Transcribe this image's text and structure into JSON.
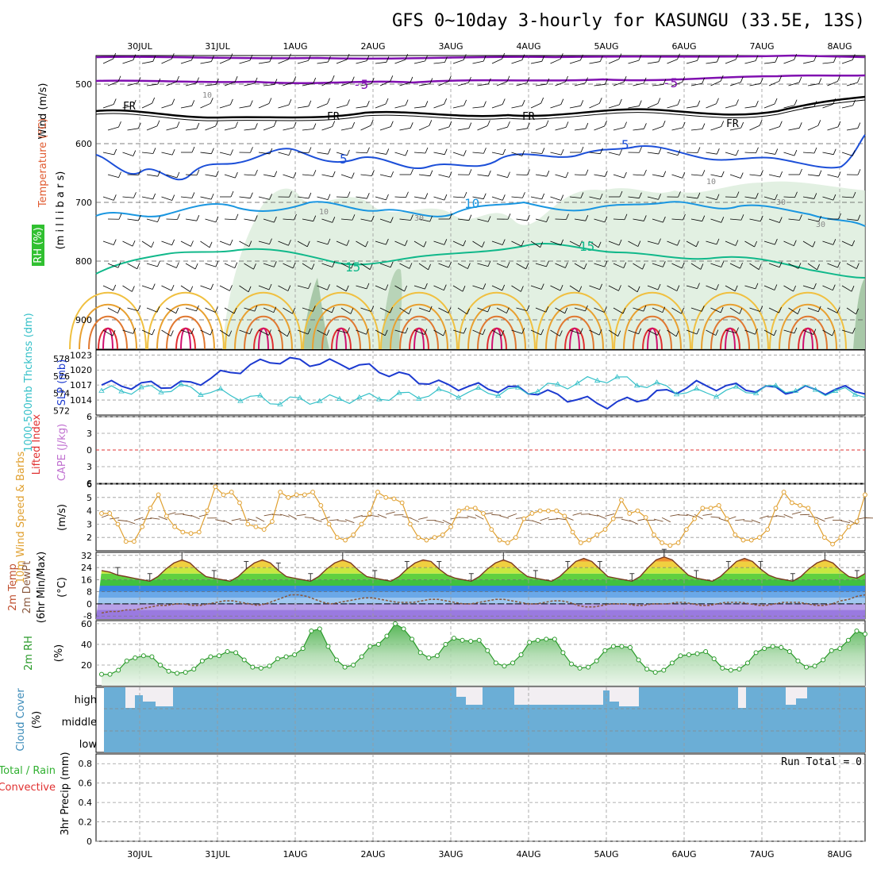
{
  "title": "GFS 0~10day 3-hourly for KASUNGU (33.5E, 13S)",
  "dates": [
    "30JUL",
    "31JUL",
    "1AUG",
    "2AUG",
    "3AUG",
    "4AUG",
    "5AUG",
    "6AUG",
    "7AUG",
    "8AUG"
  ],
  "colors": {
    "frame": "#000000",
    "grid": "#999999",
    "wind_purple": "#8010b0",
    "freezing": "#000000",
    "temp5": "#1c4fd8",
    "temp10": "#1a96e0",
    "temp15": "#10b88a",
    "rh_fill": "#d8ebd8",
    "slp": "#1c3ad0",
    "thickness": "#35c0c8",
    "lifted_zero": "#e03030",
    "wind10": "#e0a030",
    "barb": "#7a5030",
    "dewpt": "#8a5a40",
    "rh2m": "#2a9a2a",
    "cloud_bg": "#6baed6",
    "cloud_clear": "#f2eef2"
  },
  "panels": {
    "upper": {
      "labels": {
        "wind": "Wind (m/s)",
        "temperature": "Temperature (°C)",
        "rh": "RH (%)",
        "millibars": "(m i l l i b a r s)"
      },
      "pressure_ticks": [
        "500",
        "600",
        "700",
        "800",
        "900"
      ],
      "contour_labels": {
        "five": "5",
        "ten": "10",
        "fifteen": "15",
        "freezing": "FR",
        "neg_five": "-5",
        "rh10": "10",
        "rh30": "30"
      }
    },
    "slp_panel": {
      "labels": {
        "thickness": "1000-500mb Thcknss (dm)",
        "slp": "SLP (mb)"
      },
      "left_ticks": [
        "578",
        "576",
        "574",
        "572"
      ],
      "right_ticks": [
        "1023",
        "1020",
        "1017",
        "1014"
      ]
    },
    "stability": {
      "labels": {
        "lifted": "Lifted Index",
        "cape": "CAPE (J/kg)"
      },
      "ticks": [
        "6",
        "3",
        "0",
        "3",
        "6"
      ]
    },
    "wind10": {
      "labels": {
        "title": "10m Wind Speed & Barbs",
        "unit": "(m/s)"
      },
      "ticks": [
        "6",
        "5",
        "4",
        "3",
        "2"
      ]
    },
    "temp2m": {
      "labels": {
        "line1": "2m Temp",
        "line2": "2m DewPt",
        "line3": "(6hr Min/Max)",
        "unit": "(°C)"
      },
      "ticks": [
        "32",
        "24",
        "16",
        "8",
        "0",
        "-8"
      ]
    },
    "rh2m": {
      "labels": {
        "title": "2m RH",
        "unit": "(%)"
      },
      "ticks": [
        "60",
        "40",
        "20"
      ]
    },
    "cloud": {
      "labels": {
        "title": "Cloud Cover",
        "unit": "(%)",
        "high": "high",
        "middle": "middle",
        "low": "low"
      }
    },
    "precip": {
      "labels": {
        "total": "Total / Rain",
        "convective": "Convective",
        "axis": "3hr Precip (mm)",
        "run_total": "Run Total = 0"
      },
      "ticks": [
        "0.8",
        "0.6",
        "0.4",
        "0.2",
        "0"
      ]
    }
  },
  "chart_data": [
    {
      "type": "line",
      "title": "Sea level pressure and 1000-500mb thickness",
      "x": [
        "30JUL",
        "31JUL",
        "1AUG",
        "2AUG",
        "3AUG",
        "4AUG",
        "5AUG",
        "6AUG",
        "7AUG",
        "8AUG"
      ],
      "series": [
        {
          "name": "SLP (mb)",
          "values": [
            1017,
            1017,
            1022,
            1021,
            1017,
            1016,
            1013,
            1017,
            1016,
            1016
          ]
        },
        {
          "name": "1000-500mb Thcknss (dm)",
          "values": [
            574.5,
            575,
            572.5,
            573,
            574,
            574.5,
            577,
            574,
            575,
            574
          ]
        }
      ]
    },
    {
      "type": "line",
      "title": "10m Wind Speed",
      "ylabel": "(m/s)",
      "values": [
        3.8,
        3.8,
        3.0,
        1.7,
        1.7,
        2.8,
        4.2,
        5.2,
        3.6,
        2.8,
        2.4,
        2.3,
        2.4,
        4.0,
        5.8,
        5.2,
        5.4,
        4.6,
        3.0,
        2.8,
        2.6,
        3.2,
        5.4,
        5.0,
        5.2,
        5.2,
        5.4,
        4.4,
        3.0,
        2.0,
        1.8,
        2.2,
        3.0,
        3.8,
        5.4,
        5.0,
        4.9,
        4.6,
        3.0,
        2.0,
        1.8,
        2.0,
        2.2,
        2.8,
        4.0,
        4.2,
        4.2,
        3.8,
        2.6,
        1.8,
        1.6,
        2.0,
        3.4,
        3.8,
        4.0,
        4.0,
        4.0,
        3.6,
        2.4,
        1.6,
        1.8,
        2.2,
        2.6,
        3.4,
        4.8,
        3.8,
        4.0,
        3.5,
        2.2,
        1.6,
        1.4,
        1.6,
        2.6,
        3.4,
        4.2,
        4.2,
        4.4,
        3.4,
        2.2,
        1.8,
        1.8,
        2.0,
        2.6,
        4.2,
        5.4,
        4.6,
        4.4,
        4.2,
        3.2,
        2.0,
        1.5,
        2.0,
        2.8,
        3.2,
        5.2
      ],
      "ylim": [
        1,
        6
      ]
    },
    {
      "type": "area",
      "title": "2m Temp",
      "ylabel": "(°C)",
      "values": [
        22,
        21,
        19,
        18,
        17,
        16,
        15,
        18,
        23,
        27,
        29,
        27,
        22,
        18,
        17,
        16,
        15,
        18,
        23,
        27,
        29,
        27,
        22,
        18,
        17,
        16,
        15,
        18,
        23,
        27,
        29,
        27,
        22,
        18,
        17,
        16,
        15,
        18,
        23,
        27,
        29,
        28,
        23,
        19,
        17,
        16,
        15,
        18,
        23,
        27,
        29,
        27,
        22,
        18,
        17,
        16,
        15,
        18,
        23,
        28,
        30,
        28,
        23,
        18,
        17,
        16,
        15,
        18,
        24,
        29,
        31,
        29,
        24,
        19,
        17,
        16,
        15,
        18,
        23,
        28,
        30,
        28,
        23,
        19,
        17,
        16,
        15,
        18,
        23,
        27,
        29,
        27,
        22,
        18,
        17,
        20
      ],
      "ylim": [
        -10,
        34
      ]
    },
    {
      "type": "line",
      "title": "2m DewPt",
      "values": [
        -6,
        -5,
        -5,
        -4,
        -4,
        -3,
        -2,
        -1,
        -1,
        0,
        0,
        -1,
        -1,
        0,
        1,
        2,
        2,
        1,
        0,
        -1,
        0,
        2,
        4,
        6,
        6,
        5,
        3,
        1,
        0,
        1,
        2,
        3,
        4,
        4,
        3,
        2,
        1,
        1,
        1,
        2,
        3,
        3,
        2,
        1,
        0,
        0,
        1,
        2,
        3,
        3,
        2,
        1,
        0,
        0,
        1,
        2,
        2,
        1,
        -1,
        -2,
        -2,
        -1,
        0,
        0,
        0,
        -1,
        -1,
        0,
        0,
        0,
        1,
        1,
        0,
        -1,
        -1,
        0,
        1,
        1,
        1,
        0,
        -1,
        -1,
        0,
        1,
        1,
        1,
        0,
        -1,
        -1,
        0,
        2,
        3,
        5,
        6
      ],
      "ylim": [
        -10,
        34
      ]
    },
    {
      "type": "area",
      "title": "2m RH",
      "ylabel": "(%)",
      "values": [
        11,
        11,
        15,
        24,
        27,
        29,
        28,
        20,
        14,
        12,
        13,
        16,
        24,
        28,
        29,
        33,
        32,
        25,
        18,
        17,
        19,
        26,
        28,
        30,
        36,
        53,
        55,
        38,
        25,
        18,
        20,
        28,
        38,
        40,
        48,
        60,
        55,
        45,
        32,
        27,
        29,
        40,
        46,
        44,
        43,
        44,
        34,
        22,
        19,
        22,
        30,
        42,
        44,
        45,
        45,
        32,
        21,
        17,
        18,
        24,
        34,
        38,
        38,
        37,
        25,
        16,
        13,
        15,
        22,
        29,
        30,
        31,
        33,
        26,
        17,
        15,
        16,
        22,
        32,
        36,
        38,
        37,
        33,
        24,
        18,
        19,
        25,
        34,
        36,
        44,
        53,
        50
      ],
      "ylim": [
        0,
        63
      ]
    },
    {
      "type": "bar",
      "title": "Cloud Cover",
      "ylabel": "(%)",
      "categories": [
        "high",
        "middle",
        "low"
      ],
      "values": [
        100,
        0,
        0
      ]
    },
    {
      "type": "bar",
      "title": "3hr Precip (mm)",
      "values": [
        0
      ],
      "ylim": [
        0,
        0.9
      ]
    }
  ]
}
